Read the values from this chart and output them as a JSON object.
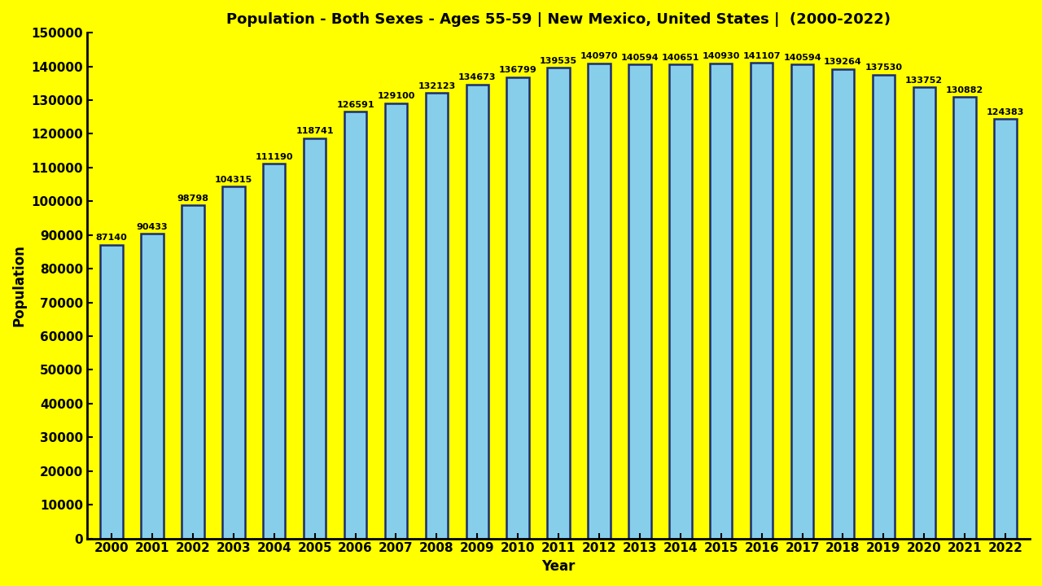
{
  "title": "Population - Both Sexes - Ages 55-59 | New Mexico, United States |  (2000-2022)",
  "xlabel": "Year",
  "ylabel": "Population",
  "background_color": "#ffff00",
  "bar_color": "#87ceeb",
  "bar_edge_color": "#1c2e6e",
  "text_color": "#000000",
  "years": [
    2000,
    2001,
    2002,
    2003,
    2004,
    2005,
    2006,
    2007,
    2008,
    2009,
    2010,
    2011,
    2012,
    2013,
    2014,
    2015,
    2016,
    2017,
    2018,
    2019,
    2020,
    2021,
    2022
  ],
  "values": [
    87140,
    90433,
    98798,
    104315,
    111190,
    118741,
    126591,
    129100,
    132123,
    134673,
    136799,
    139535,
    140970,
    140594,
    140651,
    140930,
    141107,
    140594,
    139264,
    137530,
    133752,
    130882,
    124383
  ],
  "ylim": [
    0,
    150000
  ],
  "yticks": [
    0,
    10000,
    20000,
    30000,
    40000,
    50000,
    60000,
    70000,
    80000,
    90000,
    100000,
    110000,
    120000,
    130000,
    140000,
    150000
  ],
  "title_fontsize": 13,
  "label_fontsize": 12,
  "tick_fontsize": 11,
  "bar_label_fontsize": 8,
  "bar_width": 0.55
}
